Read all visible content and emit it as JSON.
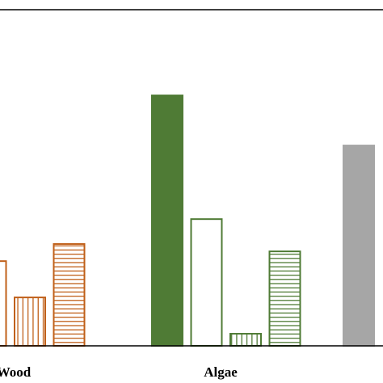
{
  "chart_data": {
    "type": "bar",
    "categories": [
      "Wood",
      "Algae",
      null
    ],
    "category_colors": [
      "#c0601a",
      "#4f7b35",
      "#a6a6a6"
    ],
    "series": [
      {
        "pattern": "solid",
        "values": [
          null,
          74.5,
          59.6
        ]
      },
      {
        "pattern": "open",
        "values": [
          25.2,
          37.7,
          null
        ]
      },
      {
        "pattern": "vertical-hatch",
        "values": [
          14.4,
          3.6,
          null
        ]
      },
      {
        "pattern": "horizontal-hatch",
        "values": [
          30.3,
          28.1,
          null
        ]
      }
    ],
    "ylim": [
      0,
      100
    ]
  }
}
